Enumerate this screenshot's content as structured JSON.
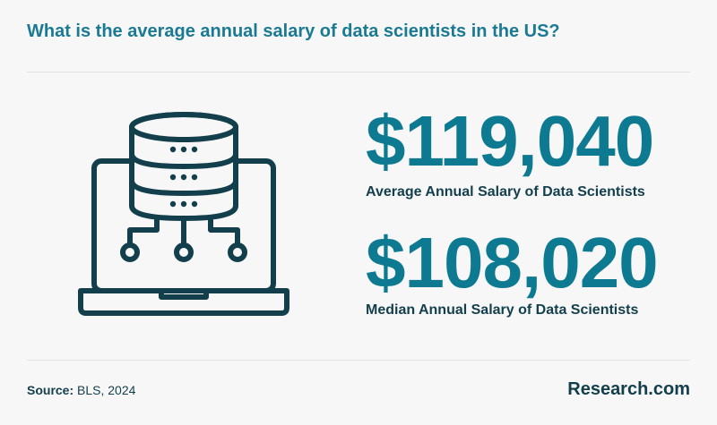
{
  "title": "What is the average annual salary of data scientists in the US?",
  "stats": [
    {
      "value": "$119,040",
      "label": "Average Annual Salary of Data Scientists"
    },
    {
      "value": "$108,020",
      "label": "Median Annual Salary of Data Scientists"
    }
  ],
  "footer": {
    "source_label": "Source:",
    "source_value": "BLS, 2024",
    "brand": "Research.com"
  },
  "illustration": {
    "icon": "laptop-database-icon"
  },
  "colors": {
    "accent": "#0e7a92",
    "dark": "#133f4c",
    "background": "#f6f7f6"
  }
}
